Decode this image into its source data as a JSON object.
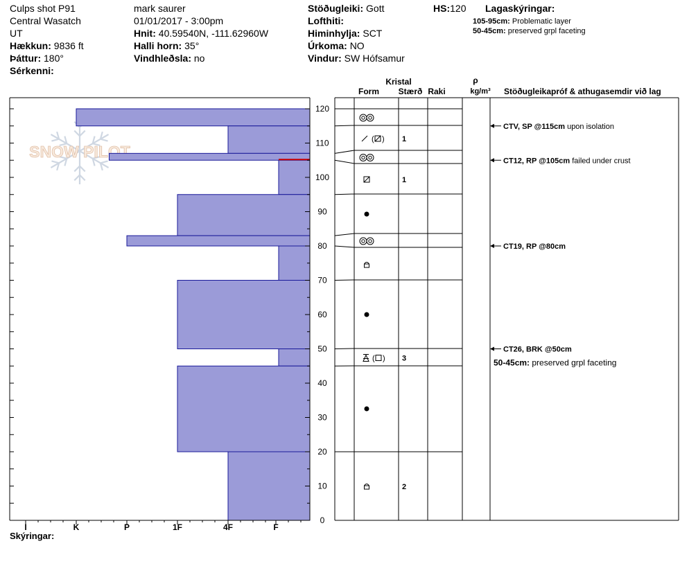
{
  "header": {
    "c1": [
      "Culps shot P91",
      "Central Wasatch",
      "UT"
    ],
    "elev_label": "Hækkun:",
    "elev_value": "9836 ft",
    "aspect_label": "Þáttur:",
    "aspect_value": "180°",
    "special_label": "Sérkenni:",
    "observer": "mark saurer",
    "datetime": "01/01/2017 - 3:00pm",
    "coord_label": "Hnit:",
    "coord_value": "40.59540N, -111.62960W",
    "slope_label": "Halli horn:",
    "slope_value": "35°",
    "loading_label": "Vindhleðsla:",
    "loading_value": "no",
    "stability_label": "Stöðugleiki:",
    "stability_value": "Gott",
    "airtemp_label": "Lofthiti:",
    "sky_label": "Himinhylja:",
    "sky_value": "SCT",
    "precip_label": "Úrkoma:",
    "precip_value": "NO",
    "wind_label": "Vindur:",
    "wind_value": "SW Hófsamur",
    "hs_label": "HS:",
    "hs_value": "120",
    "layers_label": "Lagaskýringar:",
    "layer_notes": [
      {
        "range": "105-95cm:",
        "text": "Problematic layer"
      },
      {
        "range": "50-45cm:",
        "text": "preserved grpl faceting"
      }
    ]
  },
  "columns": {
    "crystal": "Kristal",
    "form": "Form",
    "size": "Stærð",
    "moisture": "Raki",
    "rho": "ρ",
    "density_unit": "kg/m³",
    "tests": "Stöðugleikapróf & athugasemdir við lag"
  },
  "legend_label": "Skýringar:",
  "watermark": "SNOW PILOT",
  "colors": {
    "bar": "#9b9bd8",
    "bar_stroke": "#1a1a99",
    "weak_layer": "#cc0000"
  },
  "chart_data": {
    "type": "bar",
    "orientation": "horizontal",
    "x_categories": [
      "I",
      "K",
      "P",
      "1F",
      "4F",
      "F"
    ],
    "y_ticks": [
      0,
      10,
      20,
      30,
      40,
      50,
      60,
      70,
      80,
      90,
      100,
      110,
      120
    ],
    "ylim": [
      0,
      120
    ],
    "hardness_scale": [
      0,
      6
    ],
    "layers": [
      {
        "top": 120,
        "bottom": 115,
        "hardness": 1.0
      },
      {
        "top": 115,
        "bottom": 107,
        "hardness": 4.0
      },
      {
        "top": 107,
        "bottom": 105,
        "hardness": 1.65
      },
      {
        "top": 105,
        "bottom": 95,
        "hardness": 5.0
      },
      {
        "top": 95,
        "bottom": 83,
        "hardness": 3.0
      },
      {
        "top": 83,
        "bottom": 80,
        "hardness": 2.0
      },
      {
        "top": 80,
        "bottom": 70,
        "hardness": 5.0
      },
      {
        "top": 70,
        "bottom": 50,
        "hardness": 3.0
      },
      {
        "top": 50,
        "bottom": 45,
        "hardness": 5.0
      },
      {
        "top": 45,
        "bottom": 20,
        "hardness": 3.0
      },
      {
        "top": 20,
        "bottom": 0,
        "hardness": 4.0
      }
    ],
    "weak_layer_height": 105,
    "crystals": [
      {
        "top": 120,
        "bottom": 115,
        "form": "graupel",
        "size": ""
      },
      {
        "top": 115,
        "bottom": 107,
        "form": "decomposing",
        "size": "1"
      },
      {
        "top": 107,
        "bottom": 105,
        "form": "graupel",
        "size": ""
      },
      {
        "top": 105,
        "bottom": 95,
        "form": "facet",
        "size": "1"
      },
      {
        "top": 95,
        "bottom": 83,
        "form": "rounded",
        "size": ""
      },
      {
        "top": 83,
        "bottom": 80,
        "form": "graupel",
        "size": ""
      },
      {
        "top": 80,
        "bottom": 70,
        "form": "mixed",
        "size": ""
      },
      {
        "top": 70,
        "bottom": 50,
        "form": "rounded",
        "size": ""
      },
      {
        "top": 50,
        "bottom": 45,
        "form": "depth-hoar",
        "size": "3"
      },
      {
        "top": 45,
        "bottom": 20,
        "form": "rounded",
        "size": ""
      },
      {
        "top": 20,
        "bottom": 0,
        "form": "mixed",
        "size": "2"
      }
    ],
    "tests": [
      {
        "height": 115,
        "code": "CTV, SP @115cm",
        "comment": "upon isolation"
      },
      {
        "height": 105,
        "code": "CT12, RP @105cm",
        "comment": "failed under crust"
      },
      {
        "height": 80,
        "code": "CT19, RP @80cm",
        "comment": ""
      },
      {
        "height": 50,
        "code": "CT26, BRK @50cm",
        "comment": ""
      }
    ],
    "annotations": [
      {
        "height": 50,
        "range": "50-45cm:",
        "text": "preserved grpl faceting"
      }
    ]
  }
}
